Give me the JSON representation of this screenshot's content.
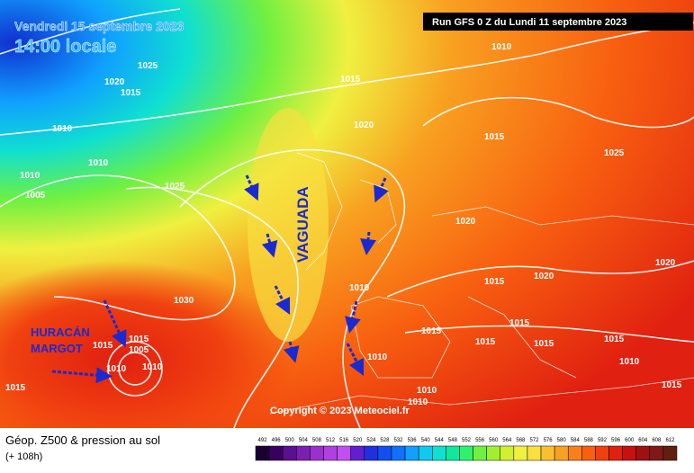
{
  "header": {
    "date": "Vendredi 15 septembre 2023",
    "time": "14:00 locale",
    "run": "Run GFS 0 Z du Lundi 11 septembre 2023"
  },
  "annotations": {
    "trough": "VAGUADA",
    "hurricane_line1": "HURACÁN",
    "hurricane_line2": "MARGOT"
  },
  "pressure_labels": [
    "1025",
    "1020",
    "1015",
    "1010",
    "1010",
    "1010",
    "1005",
    "1025",
    "1015",
    "1010",
    "1020",
    "1015",
    "1025",
    "1020",
    "1020",
    "1020",
    "1015",
    "1010",
    "1030",
    "1015",
    "1015",
    "1015",
    "1005",
    "1010",
    "1010",
    "1015",
    "1015",
    "1015",
    "1015",
    "1010",
    "1010",
    "1010",
    "1010",
    "1015",
    "1015"
  ],
  "copyright": "Copyright © 2023 Meteociel.fr",
  "footer": {
    "title": "Géop. Z500 & pression au sol",
    "lead": "(+ 108h)"
  },
  "colorbar": {
    "labels": [
      "492",
      "496",
      "500",
      "504",
      "508",
      "512",
      "516",
      "520",
      "524",
      "528",
      "532",
      "536",
      "540",
      "544",
      "548",
      "552",
      "556",
      "560",
      "564",
      "568",
      "572",
      "576",
      "580",
      "584",
      "588",
      "592",
      "596",
      "600",
      "604",
      "608",
      "612"
    ],
    "colors": [
      "#1a0030",
      "#3a0060",
      "#5a1090",
      "#7a20b0",
      "#9a30d0",
      "#b040e0",
      "#c050f0",
      "#6020d0",
      "#2030e0",
      "#1050f0",
      "#1070ff",
      "#10a0ff",
      "#10c8f0",
      "#10e0d0",
      "#10e8a0",
      "#30f070",
      "#70f040",
      "#a0f030",
      "#d0f030",
      "#f0f040",
      "#f8e040",
      "#f8c030",
      "#f8a020",
      "#f88018",
      "#f86010",
      "#f04010",
      "#e02010",
      "#c81010",
      "#a01010",
      "#801818",
      "#602010"
    ]
  }
}
